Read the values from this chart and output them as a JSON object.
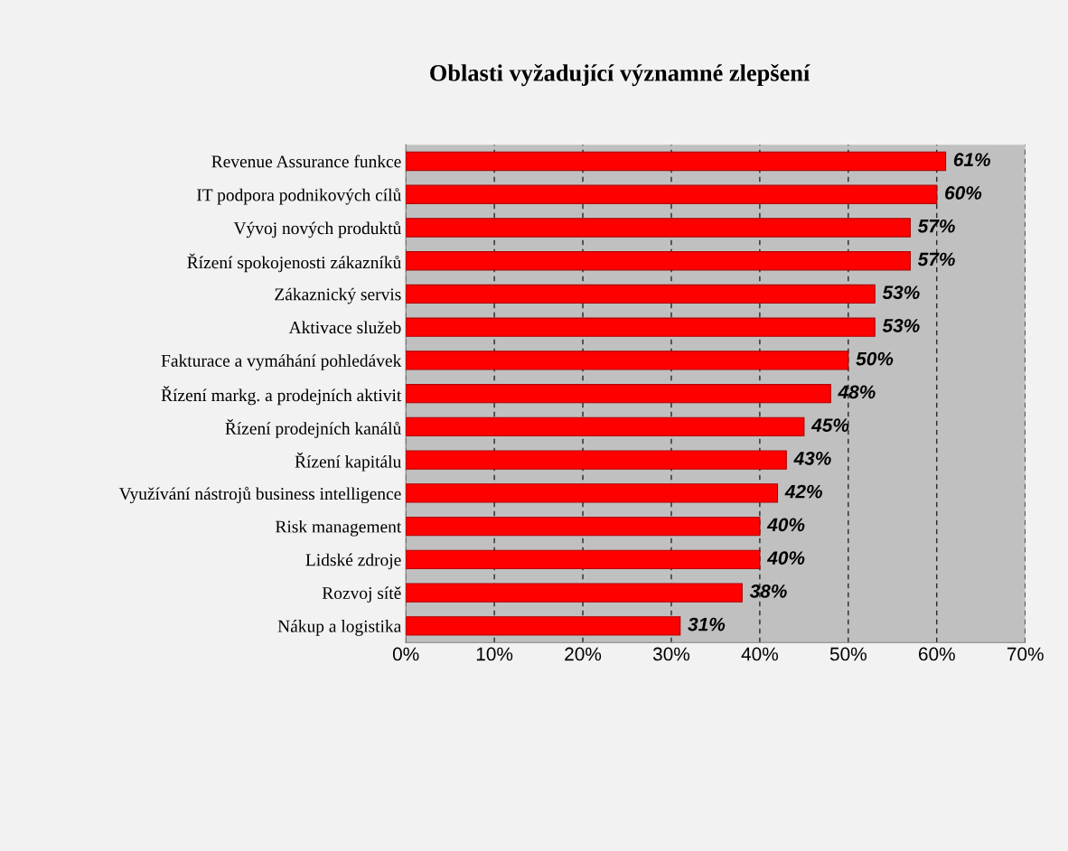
{
  "chart_data": {
    "type": "bar",
    "orientation": "horizontal",
    "title": "Oblasti vyžadující významné zlepšení",
    "categories": [
      "Revenue Assurance funkce",
      "IT podpora podnikových cílů",
      "Vývoj nových produktů",
      "Řízení spokojenosti zákazníků",
      "Zákaznický servis",
      "Aktivace služeb",
      "Fakturace a vymáhání pohledávek",
      "Řízení markg. a prodejních aktivit",
      "Řízení prodejních kanálů",
      "Řízení kapitálu",
      "Využívání nástrojů business intelligence",
      "Risk management",
      "Lidské zdroje",
      "Rozvoj sítě",
      "Nákup a logistika"
    ],
    "values": [
      61,
      60,
      57,
      57,
      53,
      53,
      50,
      48,
      45,
      43,
      42,
      40,
      40,
      38,
      31
    ],
    "value_labels": [
      "61%",
      "60%",
      "57%",
      "57%",
      "53%",
      "53%",
      "50%",
      "48%",
      "45%",
      "43%",
      "42%",
      "40%",
      "40%",
      "38%",
      "31%"
    ],
    "color": "#ff0000",
    "xlim": [
      0,
      70
    ],
    "xticks": [
      {
        "value": 0,
        "label": "0%"
      },
      {
        "value": 10,
        "label": "10%"
      },
      {
        "value": 20,
        "label": "20%"
      },
      {
        "value": 30,
        "label": "30%"
      },
      {
        "value": 40,
        "label": "40%"
      },
      {
        "value": 50,
        "label": "50%"
      },
      {
        "value": 60,
        "label": "60%"
      },
      {
        "value": 70,
        "label": "70%"
      }
    ],
    "grid": "x",
    "line_style": "dashed"
  }
}
